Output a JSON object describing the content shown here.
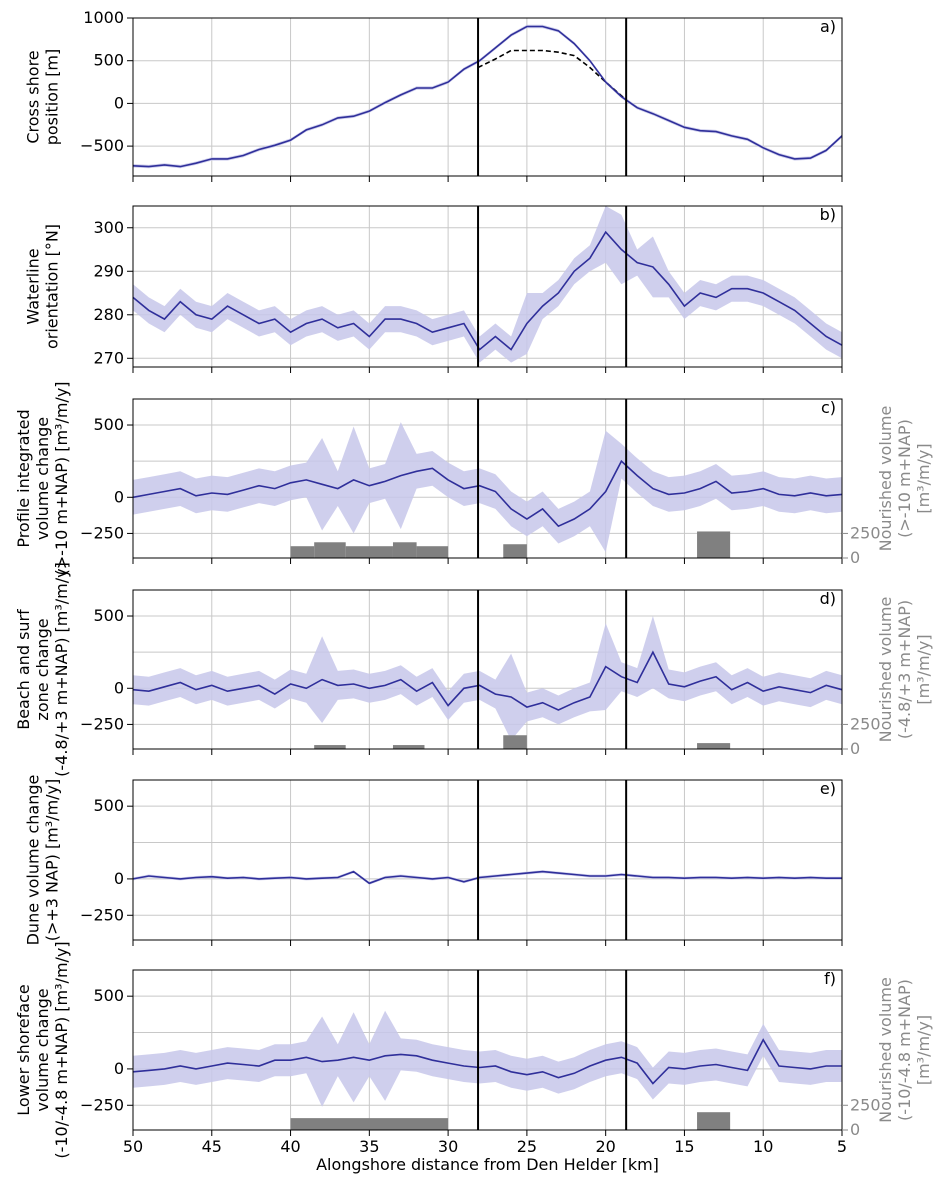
{
  "figure": {
    "xlabel": "Alongshore distance from Den Helder [km]",
    "x_ticks": [
      50,
      45,
      40,
      35,
      30,
      25,
      20,
      15,
      10,
      5
    ],
    "xlim": [
      50,
      5
    ],
    "vertical_lines_km": [
      28.1,
      18.7
    ],
    "colors": {
      "line": "#2f2f9a",
      "band": "#c7c7ea",
      "grid": "#c8c8c8",
      "bar": "#808080",
      "axis_text": "#000000",
      "secondary_text": "#8a8a8a",
      "marker": "#000000"
    }
  },
  "chart_data": [
    {
      "id": "a",
      "type": "line",
      "panel_label": "a)",
      "ylabel": [
        "Cross shore",
        "position [m]"
      ],
      "ylim": [
        -850,
        1000
      ],
      "yticks": [
        1000,
        500,
        0,
        -500
      ],
      "grid": true,
      "band_width": 20,
      "series_x": [
        50,
        49,
        48,
        47,
        46,
        45,
        44,
        43,
        42,
        41,
        40,
        39,
        38,
        37,
        36,
        35,
        34,
        33,
        32,
        31,
        30,
        29,
        28,
        27,
        26,
        25,
        24,
        23,
        22,
        21,
        20,
        19,
        18,
        17,
        16,
        15,
        14,
        13,
        12,
        11,
        10,
        9,
        8,
        7,
        6,
        5
      ],
      "series_y": [
        -730,
        -740,
        -720,
        -740,
        -700,
        -650,
        -650,
        -610,
        -540,
        -490,
        -430,
        -310,
        -250,
        -170,
        -150,
        -90,
        10,
        100,
        180,
        180,
        250,
        400,
        500,
        650,
        800,
        900,
        900,
        850,
        700,
        500,
        250,
        80,
        -50,
        -120,
        -200,
        -280,
        -320,
        -330,
        -380,
        -420,
        -520,
        -600,
        -650,
        -640,
        -550,
        -380
      ],
      "dashed_x": [
        28.1,
        27,
        26,
        25,
        24,
        23,
        22,
        21,
        20,
        19,
        18.7
      ],
      "dashed_y": [
        420,
        520,
        620,
        620,
        620,
        600,
        560,
        420,
        250,
        90,
        40
      ]
    },
    {
      "id": "b",
      "type": "line",
      "panel_label": "b)",
      "ylabel": [
        "Waterline",
        "orientation [$^\\circ$N]"
      ],
      "ylabel_display": [
        "Waterline",
        "orientation [°N]"
      ],
      "ylim": [
        268,
        305
      ],
      "yticks": [
        300,
        290,
        280,
        270
      ],
      "grid": true,
      "band_width": 3,
      "series_x": [
        50,
        49,
        48,
        47,
        46,
        45,
        44,
        43,
        42,
        41,
        40,
        39,
        38,
        37,
        36,
        35,
        34,
        33,
        32,
        31,
        30,
        29,
        28,
        27,
        26,
        25,
        24,
        23,
        22,
        21,
        20,
        19,
        18,
        17,
        16,
        15,
        14,
        13,
        12,
        11,
        10,
        9,
        8,
        7,
        6,
        5
      ],
      "series_y": [
        284,
        281,
        279,
        283,
        280,
        279,
        282,
        280,
        278,
        279,
        276,
        278,
        279,
        277,
        278,
        275,
        279,
        279,
        278,
        276,
        277,
        278,
        272,
        275,
        272,
        278,
        282,
        285,
        290,
        293,
        299,
        295,
        292,
        291,
        287,
        282,
        285,
        284,
        286,
        286,
        285,
        283,
        281,
        278,
        275,
        273
      ],
      "band_extra": {
        "19": 5,
        "20": 4,
        "25": 4,
        "17": 4
      }
    },
    {
      "id": "c",
      "type": "line+bar",
      "panel_label": "c)",
      "ylabel": [
        "Profile integrated",
        "volume change",
        "(>-10 m+NAP) [m³/m/y]"
      ],
      "ylim": [
        -420,
        680
      ],
      "yticks": [
        500,
        0,
        -250
      ],
      "grid": true,
      "secondary_ylabel": [
        "Nourished volume",
        "(>-10 m+NAP)",
        "[m³/m/y]"
      ],
      "secondary_ticks": [
        250,
        0
      ],
      "bars": [
        {
          "x0": 40,
          "x1": 38.5,
          "value": 120
        },
        {
          "x0": 38.5,
          "x1": 36.5,
          "value": 160
        },
        {
          "x0": 36.5,
          "x1": 33.5,
          "value": 120
        },
        {
          "x0": 33.5,
          "x1": 32,
          "value": 160
        },
        {
          "x0": 32,
          "x1": 30,
          "value": 120
        },
        {
          "x0": 26.5,
          "x1": 25,
          "value": 140
        },
        {
          "x0": 14.2,
          "x1": 12.1,
          "value": 270
        }
      ],
      "band_base": 120,
      "series_x": [
        50,
        49,
        48,
        47,
        46,
        45,
        44,
        43,
        42,
        41,
        40,
        39,
        38,
        37,
        36,
        35,
        34,
        33,
        32,
        31,
        30,
        29,
        28,
        27,
        26,
        25,
        24,
        23,
        22,
        21,
        20,
        19,
        18,
        17,
        16,
        15,
        14,
        13,
        12,
        11,
        10,
        9,
        8,
        7,
        6,
        5
      ],
      "series_y": [
        0,
        20,
        40,
        60,
        10,
        30,
        20,
        50,
        80,
        60,
        100,
        120,
        90,
        60,
        120,
        80,
        110,
        150,
        180,
        200,
        120,
        60,
        80,
        40,
        -80,
        -150,
        -80,
        -200,
        -150,
        -80,
        40,
        250,
        150,
        60,
        20,
        30,
        60,
        110,
        30,
        40,
        60,
        20,
        10,
        30,
        10,
        20
      ],
      "band_extra": {
        "20": 300,
        "38": 200,
        "36": 250,
        "33": 250
      }
    },
    {
      "id": "d",
      "type": "line+bar",
      "panel_label": "d)",
      "ylabel": [
        "Beach and surf",
        "zone change",
        "(-4.8/+3 m+NAP) [m³/m/y]"
      ],
      "ylim": [
        -420,
        680
      ],
      "yticks": [
        500,
        0,
        -250
      ],
      "grid": true,
      "secondary_ylabel": [
        "Nourished volume",
        "(-4.8/+3 m+NAP)",
        "[m³/m/y]"
      ],
      "secondary_ticks": [
        250,
        0
      ],
      "bars": [
        {
          "x0": 38.5,
          "x1": 36.5,
          "value": 40
        },
        {
          "x0": 33.5,
          "x1": 31.5,
          "value": 40
        },
        {
          "x0": 26.5,
          "x1": 25,
          "value": 140
        },
        {
          "x0": 14.2,
          "x1": 12.1,
          "value": 60
        }
      ],
      "band_base": 100,
      "series_x": [
        50,
        49,
        48,
        47,
        46,
        45,
        44,
        43,
        42,
        41,
        40,
        39,
        38,
        37,
        36,
        35,
        34,
        33,
        32,
        31,
        30,
        29,
        28,
        27,
        26,
        25,
        24,
        23,
        22,
        21,
        20,
        19,
        18,
        17,
        16,
        15,
        14,
        13,
        12,
        11,
        10,
        9,
        8,
        7,
        6,
        5
      ],
      "series_y": [
        -10,
        -20,
        10,
        40,
        -10,
        20,
        -20,
        0,
        20,
        -40,
        30,
        0,
        60,
        20,
        30,
        0,
        20,
        60,
        -20,
        40,
        -120,
        0,
        20,
        -40,
        -60,
        -130,
        -100,
        -150,
        -100,
        -60,
        150,
        80,
        40,
        250,
        30,
        10,
        50,
        80,
        -10,
        40,
        -20,
        10,
        -10,
        -30,
        20,
        -10
      ],
      "band_extra": {
        "38": 200,
        "20": 200,
        "26": 200,
        "17": 150
      }
    },
    {
      "id": "e",
      "type": "line",
      "panel_label": "e)",
      "ylabel": [
        "Dune volume change",
        "(>+3 NAP) [m³/m/y]"
      ],
      "ylim": [
        -420,
        680
      ],
      "yticks": [
        500,
        0,
        -250
      ],
      "grid": true,
      "band_base": 10,
      "series_x": [
        50,
        49,
        48,
        47,
        46,
        45,
        44,
        43,
        42,
        41,
        40,
        39,
        38,
        37,
        36,
        35,
        34,
        33,
        32,
        31,
        30,
        29,
        28,
        27,
        26,
        25,
        24,
        23,
        22,
        21,
        20,
        19,
        18,
        17,
        16,
        15,
        14,
        13,
        12,
        11,
        10,
        9,
        8,
        7,
        6,
        5
      ],
      "series_y": [
        0,
        20,
        10,
        0,
        10,
        15,
        5,
        10,
        0,
        5,
        10,
        0,
        5,
        10,
        50,
        -30,
        10,
        20,
        10,
        0,
        10,
        -20,
        10,
        20,
        30,
        40,
        50,
        40,
        30,
        20,
        20,
        30,
        20,
        10,
        10,
        5,
        10,
        10,
        5,
        10,
        5,
        10,
        5,
        10,
        5,
        5
      ]
    },
    {
      "id": "f",
      "type": "line+bar",
      "panel_label": "f)",
      "ylabel": [
        "Lower shoreface",
        "volume change",
        "(-10/-4.8 m+NAP) [m³/m/y]"
      ],
      "ylim": [
        -420,
        680
      ],
      "yticks": [
        500,
        0,
        -250
      ],
      "grid": true,
      "secondary_ylabel": [
        "Nourished volume",
        "(-10/-4.8 m+NAP)",
        "[m³/m/y]"
      ],
      "secondary_ticks": [
        250,
        0
      ],
      "bars": [
        {
          "x0": 40,
          "x1": 30,
          "value": 120
        },
        {
          "x0": 14.2,
          "x1": 12.1,
          "value": 180
        }
      ],
      "band_base": 110,
      "series_x": [
        50,
        49,
        48,
        47,
        46,
        45,
        44,
        43,
        42,
        41,
        40,
        39,
        38,
        37,
        36,
        35,
        34,
        33,
        32,
        31,
        30,
        29,
        28,
        27,
        26,
        25,
        24,
        23,
        22,
        21,
        20,
        19,
        18,
        17,
        16,
        15,
        14,
        13,
        12,
        11,
        10,
        9,
        8,
        7,
        6,
        5
      ],
      "series_y": [
        -20,
        -10,
        0,
        20,
        0,
        20,
        40,
        30,
        20,
        60,
        60,
        80,
        50,
        60,
        80,
        60,
        90,
        100,
        90,
        60,
        40,
        20,
        10,
        20,
        -20,
        -40,
        -20,
        -60,
        -30,
        20,
        60,
        80,
        40,
        -100,
        10,
        0,
        20,
        30,
        10,
        -10,
        200,
        20,
        10,
        0,
        20,
        20
      ],
      "band_extra": {
        "38": 200,
        "36": 200,
        "34": 200,
        "9.7": 220
      }
    }
  ]
}
